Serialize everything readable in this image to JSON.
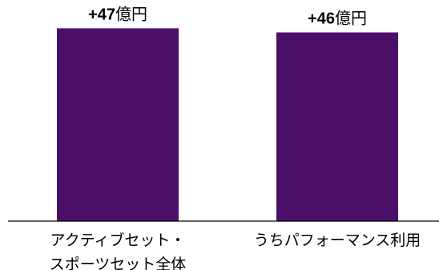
{
  "chart_data": {
    "type": "bar",
    "categories": [
      [
        "アクティブセット・",
        "スポーツセット全体"
      ],
      [
        "うちパフォーマンス利用"
      ]
    ],
    "values": [
      47,
      46
    ],
    "data_labels": [
      {
        "num": "+47",
        "unit": "億円"
      },
      {
        "num": "+46",
        "unit": "億円"
      }
    ],
    "title": "",
    "xlabel": "",
    "ylabel": "",
    "ylim": [
      0,
      50
    ],
    "grid": false,
    "legend": "none",
    "colors": {
      "bar": "#4b0f68",
      "axis": "#000000",
      "text": "#000000"
    }
  }
}
